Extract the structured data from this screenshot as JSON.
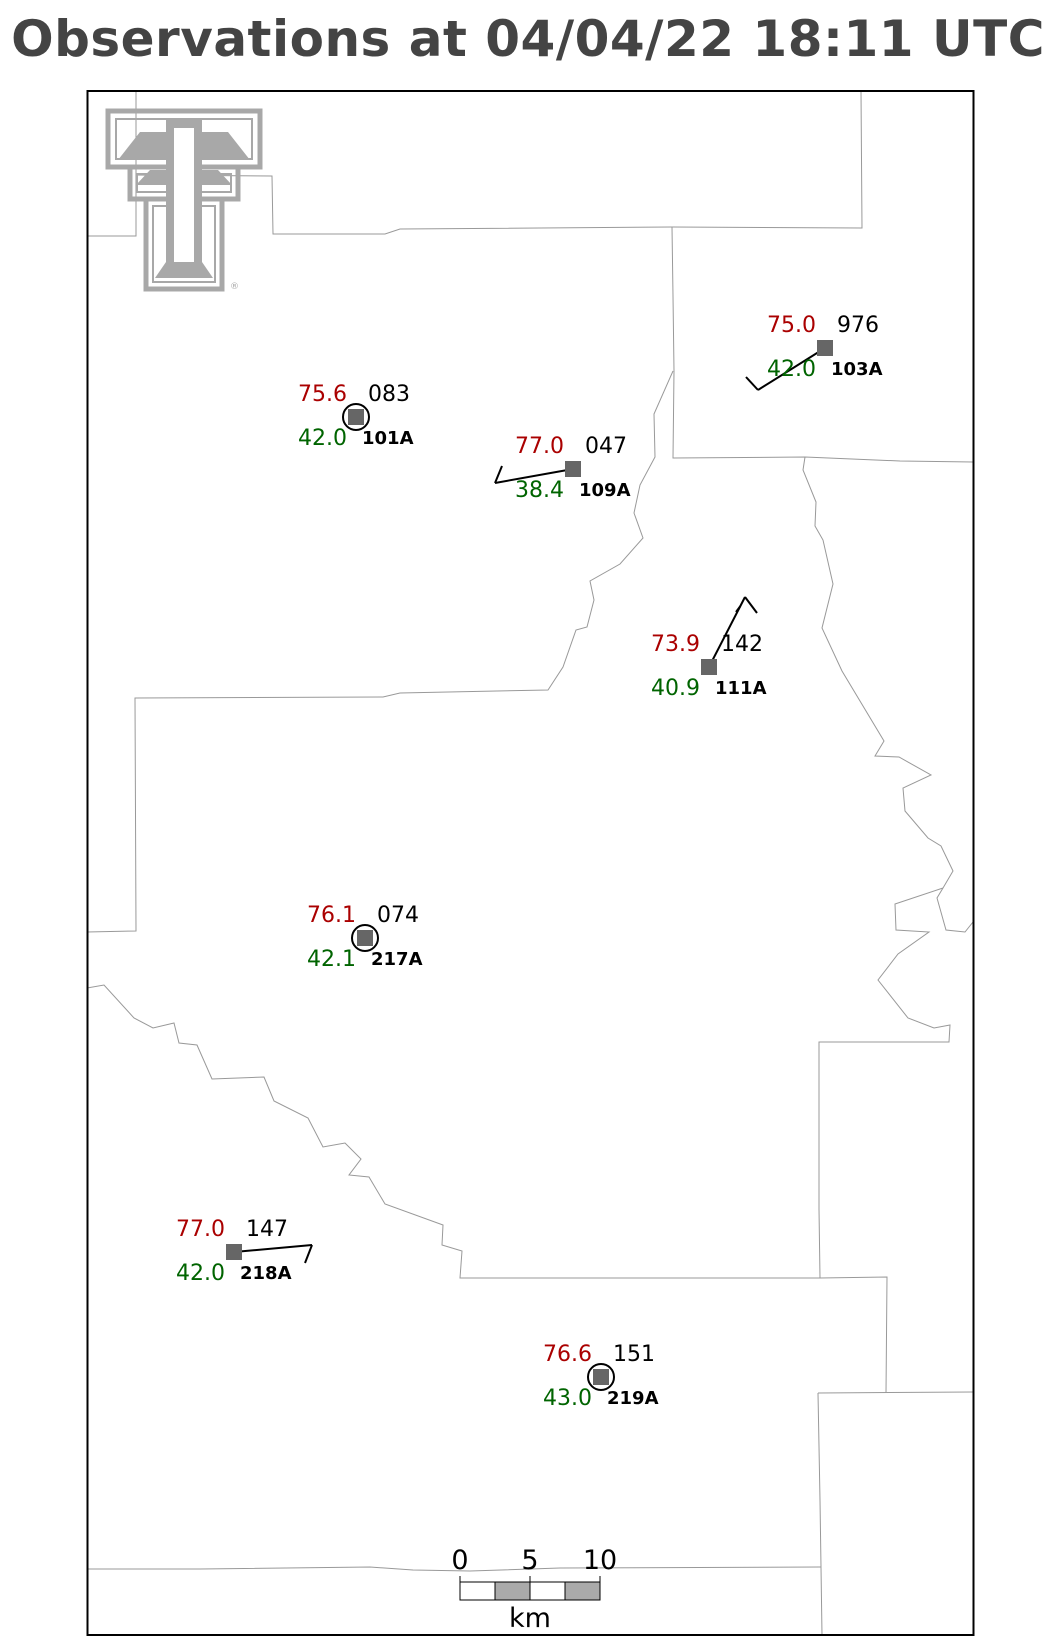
{
  "title": "Observations at 04/04/22 18:11 UTC",
  "colors": {
    "temperature": "#aa0000",
    "dewpoint": "#006400",
    "marker": "#666666",
    "border": "#999999",
    "logo": "#a8a8a8"
  },
  "logo": {
    "mark": "®"
  },
  "scale_bar": {
    "ticks": [
      "0",
      "5",
      "10"
    ],
    "unit": "km"
  },
  "stations": [
    {
      "id": "101A",
      "temp": "75.6",
      "dewpoint": "42.0",
      "pressure": "083",
      "sky": "calm-circle"
    },
    {
      "id": "109A",
      "temp": "77.0",
      "dewpoint": "38.4",
      "pressure": "047",
      "sky": "wind-barb"
    },
    {
      "id": "103A",
      "temp": "75.0",
      "dewpoint": "42.0",
      "pressure": "976",
      "sky": "wind-barb"
    },
    {
      "id": "111A",
      "temp": "73.9",
      "dewpoint": "40.9",
      "pressure": "142",
      "sky": "wind-barb"
    },
    {
      "id": "217A",
      "temp": "76.1",
      "dewpoint": "42.1",
      "pressure": "074",
      "sky": "calm-circle"
    },
    {
      "id": "218A",
      "temp": "77.0",
      "dewpoint": "42.0",
      "pressure": "147",
      "sky": "wind-barb"
    },
    {
      "id": "219A",
      "temp": "76.6",
      "dewpoint": "43.0",
      "pressure": "151",
      "sky": "calm-circle"
    }
  ]
}
